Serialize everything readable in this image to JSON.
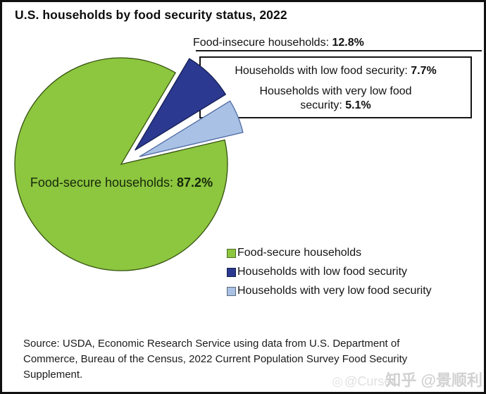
{
  "title": "U.S. households by food security status, 2022",
  "callout": {
    "insecure_label": "Food-insecure households: ",
    "insecure_value": "12.8%",
    "low_label": "Households with low food security: ",
    "low_value": "7.7%",
    "very_low_label": "Households with very low food security: ",
    "very_low_value": "5.1%"
  },
  "pie_label": {
    "text": "Food-secure households: ",
    "value": "87.2%"
  },
  "legend": {
    "items": [
      {
        "label": "Food-secure households",
        "color": "#8DC63F"
      },
      {
        "label": "Households with low food security",
        "color": "#2B3990"
      },
      {
        "label": "Households with very low food security",
        "color": "#A9C1E4"
      }
    ]
  },
  "source": {
    "lines": [
      "Source: USDA, Economic Research Service using data from U.S. Department of",
      "Commerce, Bureau of the Census, 2022 Current Population Survey Food Security",
      "Supplement."
    ]
  },
  "watermark": {
    "icon_left": "◎",
    "faint": "@Curser",
    "main": "知乎 @景顺利"
  },
  "chart_data": {
    "type": "pie",
    "title": "U.S. households by food security status, 2022",
    "unit": "percent of U.S. households",
    "slices": [
      {
        "label": "Food-secure households",
        "value": 87.2,
        "color": "#8DC63F",
        "stroke": "#33510f",
        "explode": 0
      },
      {
        "label": "Households with low food security",
        "value": 7.7,
        "color": "#2B3990",
        "stroke": "#141d52",
        "explode": 28
      },
      {
        "label": "Households with very low food security",
        "value": 5.1,
        "color": "#A9C1E4",
        "stroke": "#4e6aa3",
        "explode": 28
      }
    ],
    "group_label": "Food-insecure households",
    "group_value": 12.8,
    "legend_position": "bottom-right"
  }
}
